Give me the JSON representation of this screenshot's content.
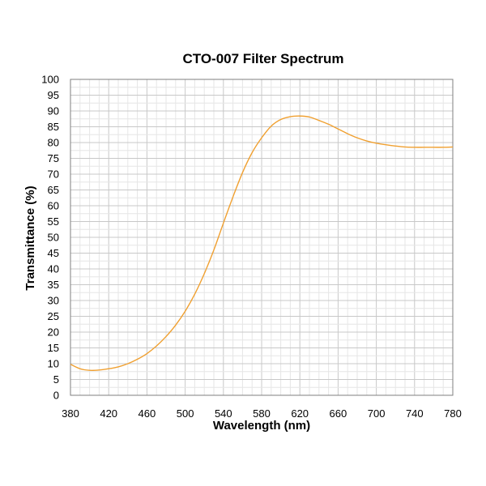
{
  "chart_data": {
    "type": "line",
    "title": "CTO-007 Filter Spectrum",
    "xlabel": "Wavelength (nm)",
    "ylabel": "Transmittance (%)",
    "xlim": [
      380,
      780
    ],
    "ylim": [
      0,
      100
    ],
    "xticks": [
      380,
      420,
      460,
      500,
      540,
      580,
      620,
      660,
      700,
      740,
      780
    ],
    "yticks": [
      0,
      5,
      10,
      15,
      20,
      25,
      30,
      35,
      40,
      45,
      50,
      55,
      60,
      65,
      70,
      75,
      80,
      85,
      90,
      95,
      100
    ],
    "grid": true,
    "legend": "none",
    "series": [
      {
        "color": "#f0a030",
        "x": [
          380,
          390,
          400,
          410,
          420,
          430,
          440,
          450,
          460,
          470,
          480,
          490,
          500,
          510,
          520,
          530,
          540,
          550,
          560,
          570,
          580,
          590,
          600,
          610,
          620,
          630,
          640,
          650,
          660,
          670,
          680,
          690,
          700,
          710,
          720,
          730,
          740,
          750,
          760,
          770,
          780
        ],
        "y": [
          9.8,
          8.4,
          7.9,
          8.0,
          8.4,
          9.0,
          10.0,
          11.4,
          13.2,
          15.6,
          18.6,
          22.2,
          26.6,
          32.0,
          38.5,
          46.0,
          54.5,
          62.8,
          70.5,
          76.8,
          81.5,
          85.2,
          87.3,
          88.2,
          88.4,
          88.1,
          87.0,
          85.8,
          84.3,
          82.8,
          81.5,
          80.5,
          79.8,
          79.3,
          78.9,
          78.6,
          78.5,
          78.5,
          78.5,
          78.5,
          78.6
        ]
      }
    ]
  }
}
